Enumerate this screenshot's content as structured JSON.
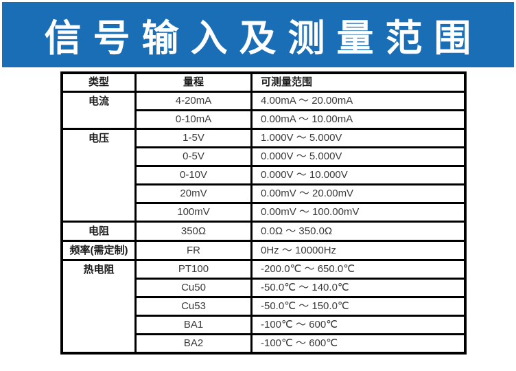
{
  "banner": {
    "title": "信 号 输 入 及 测 量 范 围",
    "bg_color": "#1a6eb6",
    "text_color": "#ffffff"
  },
  "colors": {
    "table_border": "#000000",
    "value_text": "#3a3a3a",
    "label_text": "#1c1c1c",
    "page_bg": "#ffffff"
  },
  "table": {
    "headers": [
      "类型",
      "量程",
      "可测量范围"
    ],
    "groups": [
      {
        "type": "电流",
        "rows": [
          {
            "range": "4-20mA",
            "measurable": "4.00mA ～ 20.00mA"
          },
          {
            "range": "0-10mA",
            "measurable": "0.00mA ～ 10.00mA"
          }
        ]
      },
      {
        "type": "电压",
        "rows": [
          {
            "range": "1-5V",
            "measurable": "1.000V ～ 5.000V"
          },
          {
            "range": "0-5V",
            "measurable": "0.000V ～ 5.000V"
          },
          {
            "range": "0-10V",
            "measurable": "0.000V ～ 10.000V"
          },
          {
            "range": "20mV",
            "measurable": "0.00mV ～ 20.00mV"
          },
          {
            "range": "100mV",
            "measurable": "0.00mV ～ 100.00mV"
          }
        ]
      },
      {
        "type": "电阻",
        "rows": [
          {
            "range": "350Ω",
            "measurable": "0.0Ω ～ 350.0Ω"
          }
        ]
      },
      {
        "type": "频率(需定制)",
        "rows": [
          {
            "range": "FR",
            "measurable": "0Hz ～ 10000Hz"
          }
        ]
      },
      {
        "type": "热电阻",
        "rows": [
          {
            "range": "PT100",
            "measurable": "-200.0℃ ～ 650.0℃"
          },
          {
            "range": "Cu50",
            "measurable": "-50.0℃ ～ 140.0℃"
          },
          {
            "range": "Cu53",
            "measurable": "-50.0℃ ～ 150.0℃"
          },
          {
            "range": "BA1",
            "measurable": "-100℃ ～ 600℃"
          },
          {
            "range": "BA2",
            "measurable": "-100℃ ～ 600℃"
          }
        ]
      }
    ]
  }
}
